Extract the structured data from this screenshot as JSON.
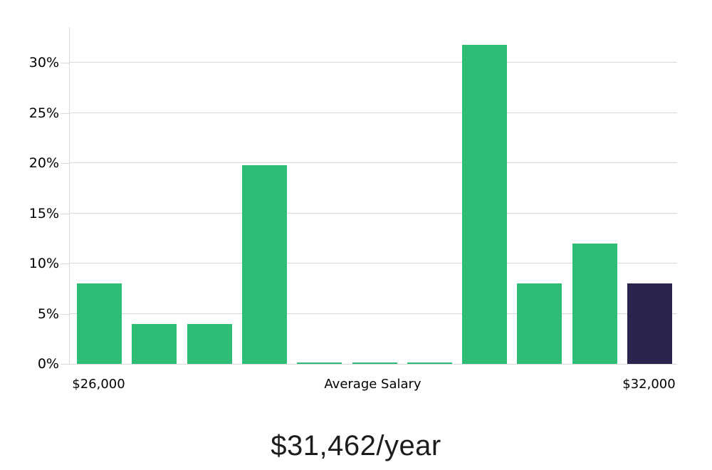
{
  "chart_data": {
    "type": "bar",
    "title": "$31,462/year",
    "x_axis_labels": {
      "left": "$26,000",
      "center": "Average Salary",
      "right": "$32,000"
    },
    "ylabel": "",
    "xlabel": "Average Salary",
    "ylim": [
      0,
      33.5
    ],
    "grid": "horizontal",
    "legend": "none",
    "yticks": [
      {
        "value": 0,
        "label": "0%"
      },
      {
        "value": 5,
        "label": "5%"
      },
      {
        "value": 10,
        "label": "10%"
      },
      {
        "value": 15,
        "label": "15%"
      },
      {
        "value": 20,
        "label": "20%"
      },
      {
        "value": 25,
        "label": "25%"
      },
      {
        "value": 30,
        "label": "30%"
      }
    ],
    "values": [
      8,
      4,
      4,
      19.8,
      0.15,
      0.15,
      0.15,
      31.8,
      8,
      12,
      8
    ],
    "highlight_index": 10,
    "colors": {
      "bar": "#2ebd77",
      "highlight_bar": "#29254e",
      "gridline": "#d9d9d9",
      "axis_text": "#000000",
      "title_text": "#1c1c1c"
    }
  }
}
